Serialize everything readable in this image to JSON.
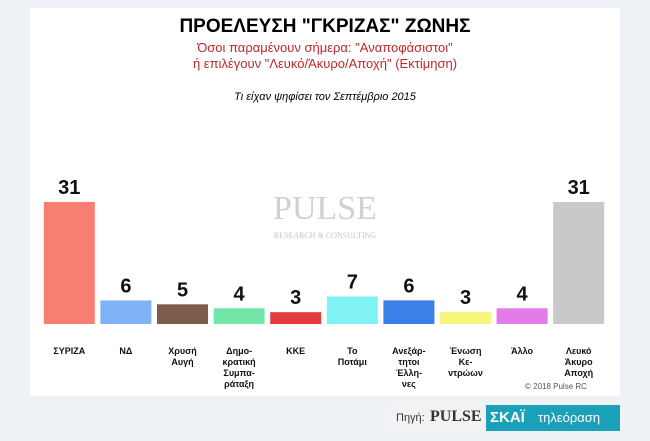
{
  "chart_data": {
    "type": "bar",
    "title": "ΠΡΟΕΛΕΥΣΗ \"ΓΚΡΙΖΑΣ\" ΖΩΝΗΣ",
    "subtitle": [
      "Όσοι παραμένουν σήμερα: \"Αναποφάσιστοι\"",
      "ή επιλέγουν \"Λευκό/Άκυρο/Αποχή\" (Εκτίμηση)"
    ],
    "caption": "Τι είχαν ψηφίσει τον Σεπτέμβριο 2015",
    "categories": [
      "ΣΥΡΙΖΑ",
      "ΝΔ",
      "Χρυσή\nΑυγή",
      "Δημο-\nκρατική\nΣυμπα-\nράταξη",
      "ΚΚΕ",
      "Το\nΠοτάμι",
      "Ανεξάρ-\nτητοι\nΈλλη-\nνες",
      "Ένωση\nΚε-\nντρώων",
      "Άλλο",
      "Λευκό\nΆκυρο\nΑποχή"
    ],
    "values": [
      31,
      6,
      5,
      4,
      3,
      7,
      6,
      3,
      4,
      31
    ],
    "colors": [
      "#f77f72",
      "#80b2f6",
      "#7d5c4d",
      "#72e6a8",
      "#e63b3b",
      "#80f2f6",
      "#3b80e6",
      "#f6f67a",
      "#e27de8",
      "#c9c9c9"
    ]
  },
  "watermark": {
    "title": "PULSE",
    "subtitle": "RESEARCH & CONSULTING"
  },
  "footer": {
    "copyright": "© 2018 Pulse RC",
    "source_label": "Πηγή:",
    "pulse_logo": "PULSE",
    "channel": "ΣΚΑΪ",
    "channel_suffix": "τηλεόραση"
  }
}
